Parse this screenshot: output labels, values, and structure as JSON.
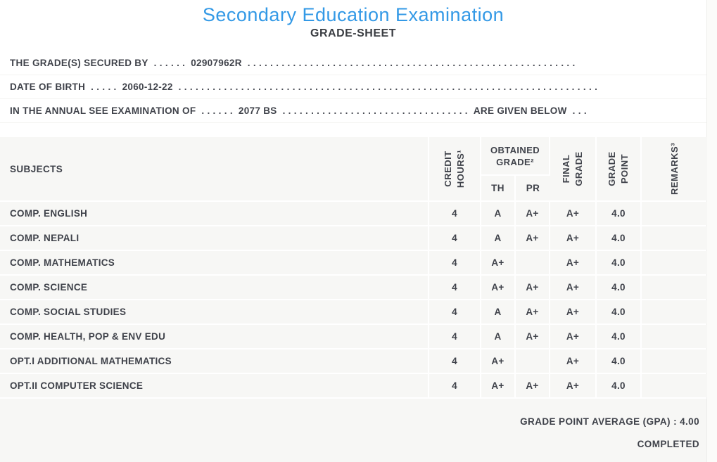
{
  "title": "Secondary Education Examination",
  "subtitle": "GRADE-SHEET",
  "info_lines": {
    "secured_by": {
      "label": "THE GRADE(S) SECURED BY",
      "dots_before": ". . . . . .",
      "value": "02907962R",
      "dots_after": ". . . . . . . . . . . . . . . . . . . . . . . . . . . . . . . . . . . . . . . . . . . . . . . . . . . . . . . . . ."
    },
    "date_of_birth": {
      "label": "DATE OF BIRTH",
      "dots_before": ". . . . .",
      "value": "2060-12-22",
      "dots_after": ". . . . . . . . . . . . . . . . . . . . . . . . . . . . . . . . . . . . . . . . . . . . . . . . . . . . . . . . . . . . . . . . . . . . . . . . . ."
    },
    "examination_of": {
      "label": "IN THE ANNUAL SEE EXAMINATION OF",
      "dots_before": ". . . . . .",
      "value": "2077 BS",
      "dots_mid": ". . . . . . . . . . . . . . . . . . . . . . . . . . . . . . . . .",
      "suffix": "ARE GIVEN BELOW",
      "dots_end": ". . ."
    }
  },
  "table": {
    "headers": {
      "subjects": "SUBJECTS",
      "credit_l1": "CREDIT",
      "credit_l2": "HOURS¹",
      "obtained_l1": "OBTAINED",
      "obtained_l2": "GRADE²",
      "th": "TH",
      "pr": "PR",
      "final_l1": "FINAL",
      "final_l2": "GRADE",
      "gp_l1": "GRADE",
      "gp_l2": "POINT",
      "remarks": "REMARKS³"
    },
    "rows": [
      {
        "subject": "COMP. ENGLISH",
        "credit": "4",
        "th": "A",
        "pr": "A+",
        "final": "A+",
        "gp": "4.0",
        "remarks": ""
      },
      {
        "subject": "COMP. NEPALI",
        "credit": "4",
        "th": "A",
        "pr": "A+",
        "final": "A+",
        "gp": "4.0",
        "remarks": ""
      },
      {
        "subject": "COMP. MATHEMATICS",
        "credit": "4",
        "th": "A+",
        "pr": "",
        "final": "A+",
        "gp": "4.0",
        "remarks": ""
      },
      {
        "subject": "COMP. SCIENCE",
        "credit": "4",
        "th": "A+",
        "pr": "A+",
        "final": "A+",
        "gp": "4.0",
        "remarks": ""
      },
      {
        "subject": "COMP. SOCIAL STUDIES",
        "credit": "4",
        "th": "A",
        "pr": "A+",
        "final": "A+",
        "gp": "4.0",
        "remarks": ""
      },
      {
        "subject": "COMP. HEALTH, POP & ENV EDU",
        "credit": "4",
        "th": "A",
        "pr": "A+",
        "final": "A+",
        "gp": "4.0",
        "remarks": ""
      },
      {
        "subject": "OPT.I ADDITIONAL MATHEMATICS",
        "credit": "4",
        "th": "A+",
        "pr": "",
        "final": "A+",
        "gp": "4.0",
        "remarks": ""
      },
      {
        "subject": "OPT.II COMPUTER SCIENCE",
        "credit": "4",
        "th": "A+",
        "pr": "A+",
        "final": "A+",
        "gp": "4.0",
        "remarks": ""
      }
    ]
  },
  "footer": {
    "gpa_line": "GRADE POINT AVERAGE (GPA) : 4.00",
    "status": "COMPLETED"
  },
  "colors": {
    "title_blue": "#3399e6",
    "text_dark": "#3f424a",
    "row_background": "#f7f7f5"
  }
}
